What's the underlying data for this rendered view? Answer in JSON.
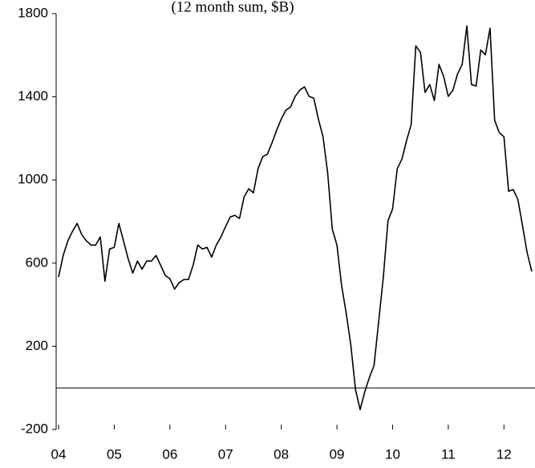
{
  "chart_data": {
    "type": "line",
    "title": "(12 month sum, $B)",
    "categories": [
      "04",
      null,
      null,
      null,
      null,
      null,
      null,
      null,
      null,
      null,
      null,
      null,
      "05",
      null,
      null,
      null,
      null,
      null,
      null,
      null,
      null,
      null,
      null,
      null,
      "06",
      null,
      null,
      null,
      null,
      null,
      null,
      null,
      null,
      null,
      null,
      null,
      "07",
      null,
      null,
      null,
      null,
      null,
      null,
      null,
      null,
      null,
      null,
      null,
      "08",
      null,
      null,
      null,
      null,
      null,
      null,
      null,
      null,
      null,
      null,
      null,
      "09",
      null,
      null,
      null,
      null,
      null,
      null,
      null,
      null,
      null,
      null,
      null,
      "10",
      null,
      null,
      null,
      null,
      null,
      null,
      null,
      null,
      null,
      null,
      null,
      "11",
      null,
      null,
      null,
      null,
      null,
      null,
      null,
      null,
      null,
      null,
      null,
      "12",
      null,
      null,
      null,
      null,
      null,
      null
    ],
    "values": [
      533,
      637,
      707,
      753,
      791,
      737,
      707,
      687,
      687,
      726,
      513,
      668,
      676,
      791,
      707,
      621,
      552,
      610,
      571,
      610,
      610,
      637,
      590,
      541,
      525,
      475,
      506,
      521,
      521,
      590,
      687,
      668,
      676,
      629,
      687,
      726,
      776,
      822,
      830,
      815,
      919,
      958,
      938,
      1054,
      1112,
      1124,
      1178,
      1239,
      1293,
      1336,
      1351,
      1402,
      1432,
      1448,
      1402,
      1394,
      1293,
      1208,
      1035,
      764,
      687,
      494,
      359,
      205,
      -8,
      -104,
      -19,
      50,
      108,
      320,
      533,
      803,
      861,
      1054,
      1100,
      1189,
      1266,
      1645,
      1614,
      1421,
      1459,
      1382,
      1556,
      1498,
      1402,
      1432,
      1510,
      1556,
      1741,
      1459,
      1452,
      1625,
      1602,
      1730,
      1286,
      1228,
      1208,
      946,
      954,
      907,
      780,
      650,
      560
    ],
    "color": "#000000",
    "ylim": [
      -200,
      1800
    ],
    "yticks": [
      -200,
      200,
      600,
      1000,
      1400,
      1800
    ]
  }
}
